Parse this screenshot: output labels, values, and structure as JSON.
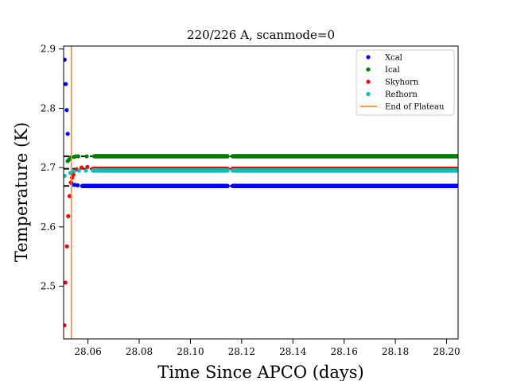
{
  "chart_data": {
    "type": "scatter",
    "title": "220/226 A, scanmode=0",
    "xlabel": "Time Since APCO (days)",
    "ylabel": "Temperature (K)",
    "xlim": [
      28.0505,
      28.2045
    ],
    "ylim": [
      2.411,
      2.905
    ],
    "x_ticks": [
      28.06,
      28.08,
      28.1,
      28.12,
      28.14,
      28.16,
      28.18,
      28.2
    ],
    "x_tick_labels": [
      "28.06",
      "28.08",
      "28.10",
      "28.12",
      "28.14",
      "28.16",
      "28.18",
      "28.20"
    ],
    "y_ticks": [
      2.5,
      2.6,
      2.7,
      2.8,
      2.9
    ],
    "y_tick_labels": [
      "2.5",
      "2.6",
      "2.7",
      "2.8",
      "2.9"
    ],
    "grid": false,
    "legend_position": "top-right",
    "gap": [
      28.1145,
      28.1165
    ],
    "series": [
      {
        "name": "Xcal",
        "color": "#0000ff",
        "plateau_value": 2.669,
        "plateau_start": 28.0578,
        "plateau_end": 28.2045,
        "transient": [
          [
            28.0509,
            2.882
          ],
          [
            28.0513,
            2.841
          ],
          [
            28.0517,
            2.797
          ],
          [
            28.0521,
            2.757
          ],
          [
            28.0535,
            2.674
          ],
          [
            28.0548,
            2.671
          ],
          [
            28.056,
            2.67
          ]
        ]
      },
      {
        "name": "Ical",
        "color": "#008000",
        "plateau_value": 2.719,
        "plateau_start": 28.0625,
        "plateau_end": 28.2045,
        "transient": [
          [
            28.0521,
            2.711
          ],
          [
            28.0527,
            2.714
          ],
          [
            28.0533,
            2.717
          ],
          [
            28.0545,
            2.718
          ],
          [
            28.0553,
            2.719
          ],
          [
            28.0562,
            2.719
          ],
          [
            28.0595,
            2.719
          ]
        ]
      },
      {
        "name": "Skyhorn",
        "color": "#ff0000",
        "plateau_value": 2.698,
        "plateau_start": 28.062,
        "plateau_end": 28.2045,
        "transient": [
          [
            28.0508,
            2.434
          ],
          [
            28.0512,
            2.506
          ],
          [
            28.0518,
            2.567
          ],
          [
            28.0523,
            2.618
          ],
          [
            28.0528,
            2.652
          ],
          [
            28.0533,
            2.675
          ],
          [
            28.0538,
            2.683
          ],
          [
            28.0543,
            2.688
          ],
          [
            28.0556,
            2.697
          ],
          [
            28.0575,
            2.7
          ],
          [
            28.0598,
            2.701
          ]
        ]
      },
      {
        "name": "Refhorn",
        "color": "#00bfbf",
        "plateau_value": 2.695,
        "plateau_start": 28.062,
        "plateau_end": 28.2045,
        "transient": [
          [
            28.0509,
            2.686
          ],
          [
            28.0531,
            2.691
          ],
          [
            28.0545,
            2.694
          ],
          [
            28.0565,
            2.695
          ],
          [
            28.0592,
            2.695
          ]
        ]
      }
    ],
    "end_of_plateau": {
      "name": "End of Plateau",
      "color": "#ff7f0e",
      "x": 28.0535
    }
  }
}
